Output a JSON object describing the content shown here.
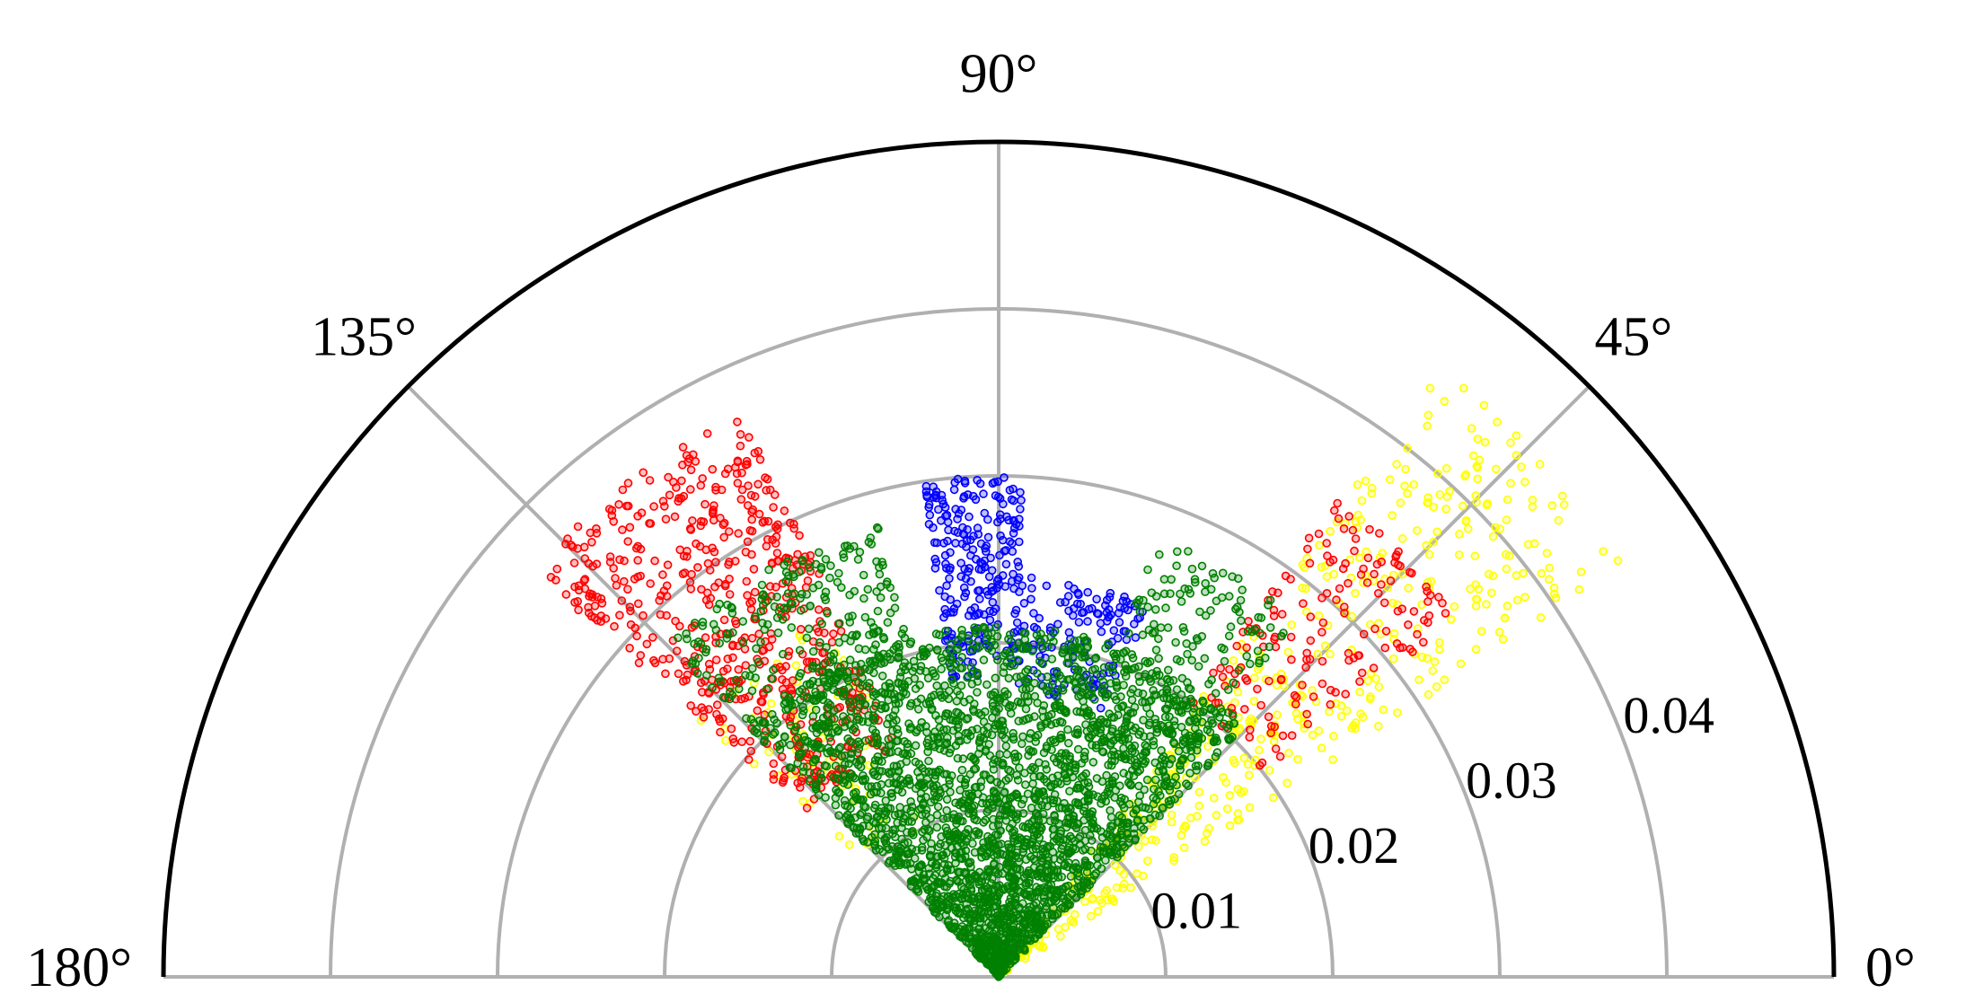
{
  "chart_data": {
    "type": "scatter",
    "projection": "polar",
    "title": "",
    "theta_range_deg": [
      0,
      180
    ],
    "r_range": [
      0,
      0.05
    ],
    "theta_tick_labels": [
      {
        "deg": 0,
        "label": "0°"
      },
      {
        "deg": 45,
        "label": "45°"
      },
      {
        "deg": 90,
        "label": "90°"
      },
      {
        "deg": 135,
        "label": "135°"
      },
      {
        "deg": 180,
        "label": "180°"
      }
    ],
    "r_ticks": [
      0.01,
      0.02,
      0.03,
      0.04
    ],
    "r_tick_labels": [
      "0.01",
      "0.02",
      "0.03",
      "0.04"
    ],
    "r_tick_label_angle_deg": 22.5,
    "grid": true,
    "legend": "none",
    "colors": {
      "grid": "#b0b0b0",
      "frame": "#000000"
    },
    "series": [
      {
        "color": "#ffff00",
        "clusters": [
          {
            "n": 450,
            "theta_deg": [
              33,
              54
            ],
            "r": [
              0.0,
              0.045
            ]
          },
          {
            "n": 60,
            "theta_deg": [
              115,
              140
            ],
            "r": [
              0.01,
              0.024
            ]
          }
        ]
      },
      {
        "color": "#ff0000",
        "clusters": [
          {
            "n": 550,
            "theta_deg": [
              114,
              139
            ],
            "r": [
              0.015,
              0.037
            ]
          },
          {
            "n": 160,
            "theta_deg": [
              38,
              55
            ],
            "r": [
              0.02,
              0.035
            ]
          }
        ]
      },
      {
        "color": "#0000ff",
        "clusters": [
          {
            "n": 230,
            "theta_deg": [
              87,
              99
            ],
            "r": [
              0.018,
              0.03
            ]
          },
          {
            "n": 140,
            "theta_deg": [
              68,
              88
            ],
            "r": [
              0.017,
              0.024
            ]
          }
        ]
      },
      {
        "color": "#008000",
        "clusters": [
          {
            "n": 2600,
            "theta_deg": [
              45,
              135
            ],
            "r": [
              0.0,
              0.021
            ]
          },
          {
            "n": 260,
            "theta_deg": [
              105,
              135
            ],
            "r": [
              0.018,
              0.028
            ]
          },
          {
            "n": 170,
            "theta_deg": [
              50,
              70
            ],
            "r": [
              0.015,
              0.028
            ]
          }
        ]
      }
    ]
  }
}
